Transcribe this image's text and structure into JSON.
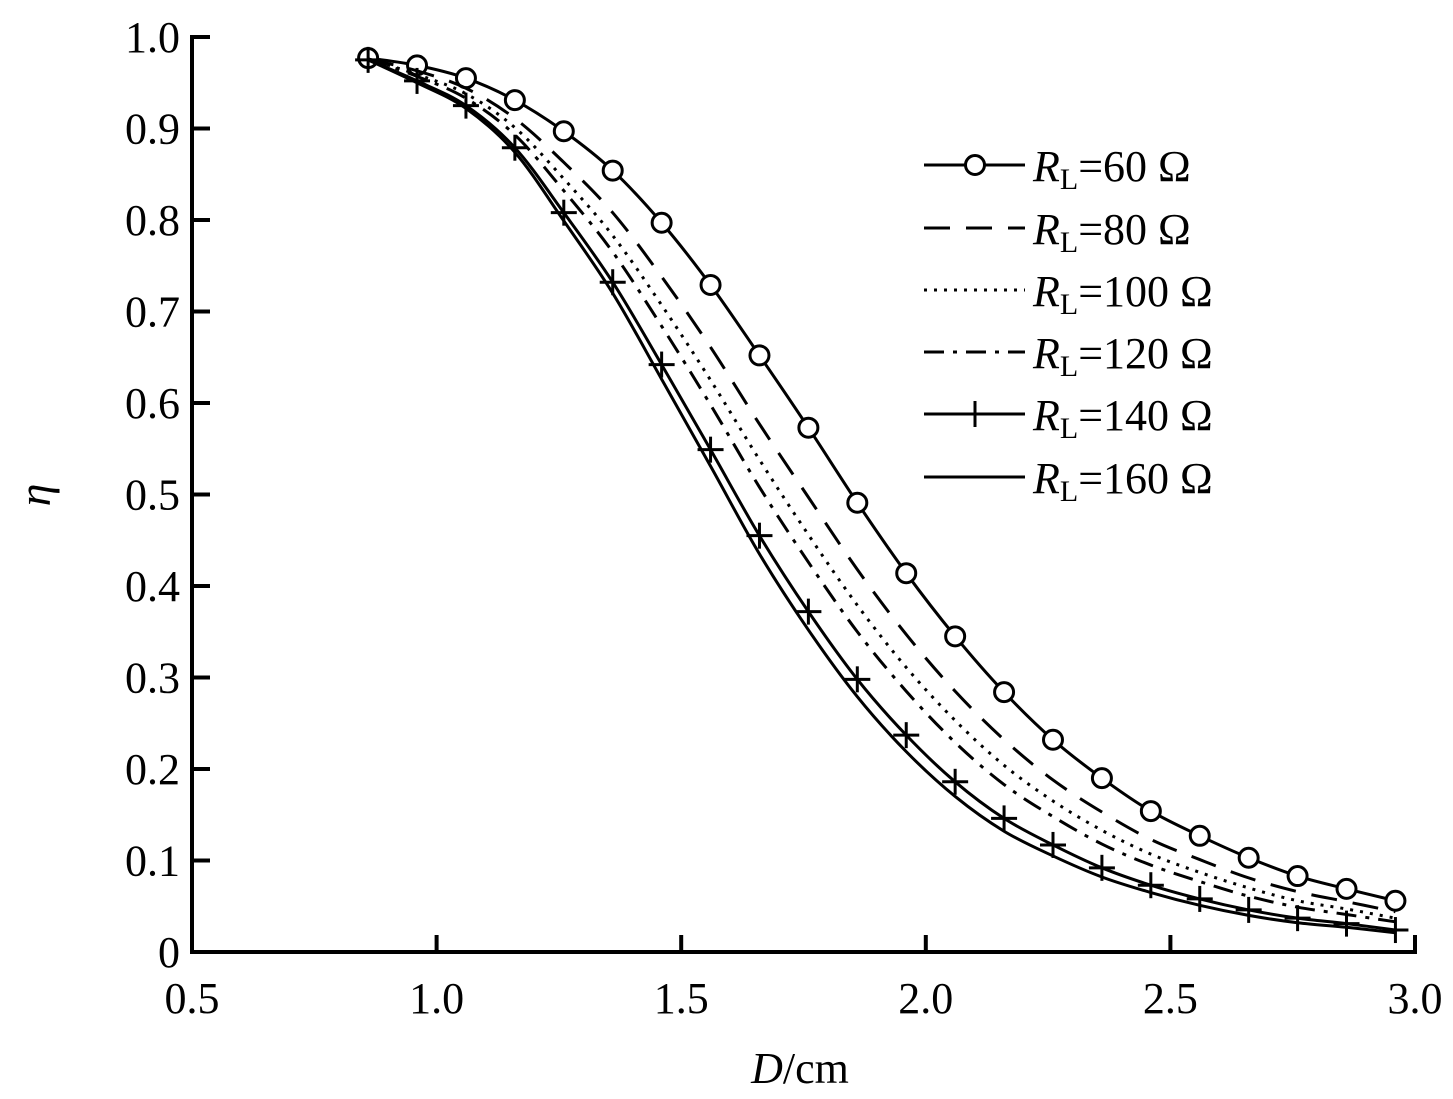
{
  "chart_data": {
    "type": "line",
    "title": "",
    "xlabel": "D/cm",
    "xlabel_italic": "D",
    "xlabel_unit": "/cm",
    "ylabel": "η",
    "xlim": [
      0.5,
      3.0
    ],
    "ylim": [
      0,
      1.0
    ],
    "grid": false,
    "legend_position": "top-right",
    "x_ticks": [
      "0.5",
      "1.0",
      "1.5",
      "2.0",
      "2.5",
      "3.0"
    ],
    "x_tick_values": [
      0.5,
      1.0,
      1.5,
      2.0,
      2.5,
      3.0
    ],
    "y_ticks": [
      "0",
      "0.1",
      "0.2",
      "0.3",
      "0.4",
      "0.5",
      "0.6",
      "0.7",
      "0.8",
      "0.9",
      "1.0"
    ],
    "y_tick_values": [
      0,
      0.1,
      0.2,
      0.3,
      0.4,
      0.5,
      0.6,
      0.7,
      0.8,
      0.9,
      1.0
    ],
    "x": [
      0.86,
      0.96,
      1.06,
      1.16,
      1.26,
      1.36,
      1.46,
      1.56,
      1.66,
      1.76,
      1.86,
      1.96,
      2.06,
      2.16,
      2.26,
      2.36,
      2.46,
      2.56,
      2.66,
      2.76,
      2.86,
      2.96
    ],
    "series": [
      {
        "name": "RL=60 Ω",
        "label_main": "R",
        "label_sub": "L",
        "label_rest": "=60 Ω",
        "style": "solid",
        "marker": "circle",
        "values": [
          0.977,
          0.969,
          0.955,
          0.931,
          0.897,
          0.854,
          0.797,
          0.729,
          0.652,
          0.573,
          0.491,
          0.414,
          0.345,
          0.284,
          0.232,
          0.19,
          0.154,
          0.127,
          0.103,
          0.083,
          0.069,
          0.056
        ]
      },
      {
        "name": "RL=80 Ω",
        "label_main": "R",
        "label_sub": "L",
        "label_rest": "=80 Ω",
        "style": "dashed",
        "marker": "none",
        "values": [
          0.976,
          0.963,
          0.944,
          0.911,
          0.863,
          0.808,
          0.738,
          0.661,
          0.577,
          0.497,
          0.418,
          0.347,
          0.285,
          0.232,
          0.188,
          0.153,
          0.123,
          0.101,
          0.081,
          0.066,
          0.055,
          0.044
        ]
      },
      {
        "name": "RL=100 Ω",
        "label_main": "R",
        "label_sub": "L",
        "label_rest": "=100 Ω",
        "style": "dotted",
        "marker": "none",
        "values": [
          0.976,
          0.959,
          0.938,
          0.901,
          0.845,
          0.783,
          0.707,
          0.625,
          0.538,
          0.456,
          0.379,
          0.311,
          0.253,
          0.204,
          0.165,
          0.133,
          0.107,
          0.087,
          0.07,
          0.056,
          0.047,
          0.037
        ]
      },
      {
        "name": "RL=120 Ω",
        "label_main": "R",
        "label_sub": "L",
        "label_rest": "=120 Ω",
        "style": "dashdot",
        "marker": "none",
        "values": [
          0.976,
          0.957,
          0.933,
          0.893,
          0.832,
          0.765,
          0.684,
          0.598,
          0.508,
          0.426,
          0.35,
          0.285,
          0.229,
          0.183,
          0.148,
          0.118,
          0.095,
          0.077,
          0.061,
          0.049,
          0.041,
          0.033
        ]
      },
      {
        "name": "RL=140 Ω",
        "label_main": "R",
        "label_sub": "L",
        "label_rest": "=140 Ω",
        "style": "solid",
        "marker": "plus",
        "values": [
          0.975,
          0.952,
          0.925,
          0.879,
          0.808,
          0.732,
          0.642,
          0.549,
          0.455,
          0.372,
          0.298,
          0.237,
          0.186,
          0.146,
          0.117,
          0.092,
          0.073,
          0.058,
          0.046,
          0.037,
          0.031,
          0.024
        ]
      },
      {
        "name": "RL=160 Ω",
        "label_main": "R",
        "label_sub": "L",
        "label_rest": "=160 Ω",
        "style": "solid",
        "marker": "none",
        "values": [
          0.975,
          0.95,
          0.922,
          0.874,
          0.799,
          0.72,
          0.626,
          0.531,
          0.435,
          0.352,
          0.279,
          0.219,
          0.17,
          0.132,
          0.105,
          0.082,
          0.065,
          0.051,
          0.04,
          0.032,
          0.027,
          0.021
        ]
      }
    ]
  }
}
